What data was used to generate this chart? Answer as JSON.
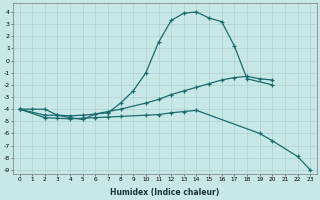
{
  "xlabel": "Humidex (Indice chaleur)",
  "background_color": "#c8e8e8",
  "grid_color": "#afd0d0",
  "line_color": "#1a6b6b",
  "xlim": [
    -0.5,
    23.5
  ],
  "ylim": [
    -9.3,
    4.7
  ],
  "x_ticks": [
    0,
    1,
    2,
    3,
    4,
    5,
    6,
    7,
    8,
    9,
    10,
    11,
    12,
    13,
    14,
    15,
    16,
    17,
    18,
    19,
    20,
    21,
    22,
    23
  ],
  "y_ticks": [
    4,
    3,
    2,
    1,
    0,
    -1,
    -2,
    -3,
    -4,
    -5,
    -6,
    -7,
    -8,
    -9
  ],
  "curve1_x": [
    0,
    1,
    2,
    3,
    4,
    5,
    6,
    7,
    8,
    9,
    10,
    11,
    12,
    13,
    14,
    15,
    16,
    17,
    18,
    20
  ],
  "curve1_y": [
    -4.0,
    -4.0,
    -4.0,
    -4.5,
    -4.7,
    -4.85,
    -4.4,
    -4.3,
    -3.5,
    -2.5,
    -1.0,
    1.5,
    3.3,
    3.9,
    4.0,
    3.5,
    3.2,
    1.2,
    -1.5,
    -2.0
  ],
  "curve2_x": [
    0,
    2,
    3,
    4,
    5,
    6,
    7,
    8,
    10,
    11,
    12,
    13,
    14,
    15,
    16,
    17,
    18,
    19,
    20
  ],
  "curve2_y": [
    -4.0,
    -4.5,
    -4.5,
    -4.55,
    -4.5,
    -4.4,
    -4.2,
    -4.0,
    -3.5,
    -3.2,
    -2.8,
    -2.5,
    -2.2,
    -1.9,
    -1.6,
    -1.4,
    -1.3,
    -1.5,
    -1.6
  ],
  "curve3_x": [
    0,
    2,
    3,
    4,
    5,
    6,
    7,
    8,
    10,
    11,
    12,
    13,
    14,
    19,
    20,
    22,
    23
  ],
  "curve3_y": [
    -4.0,
    -4.7,
    -4.75,
    -4.8,
    -4.75,
    -4.7,
    -4.65,
    -4.6,
    -4.5,
    -4.45,
    -4.3,
    -4.2,
    -4.1,
    -6.0,
    -6.6,
    -7.9,
    -9.0
  ]
}
